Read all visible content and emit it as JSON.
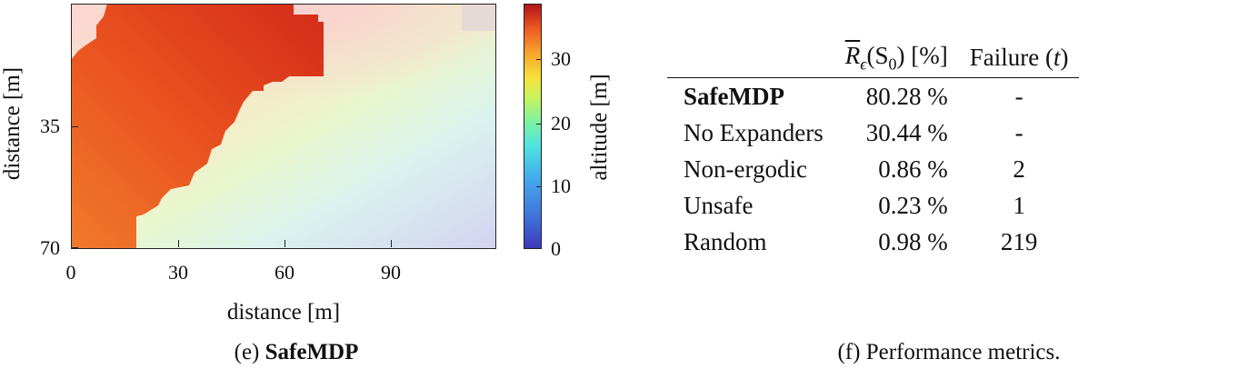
{
  "figure_e": {
    "caption_prefix": "(e) ",
    "caption_bold": "SafeMDP",
    "xlabel": "distance [m]",
    "ylabel": "distance [m]",
    "colorbar_label": "altitude [m]",
    "x_ticks": [
      "0",
      "30",
      "60",
      "90"
    ],
    "y_ticks": [
      "35",
      "70"
    ],
    "colorbar_ticks": [
      "0",
      "10",
      "20",
      "30"
    ],
    "colors": {
      "safe_region": "#ef5a1e",
      "safe_peak": "#d3301a",
      "background_high": "#fbd3d3",
      "background_low": "#d6d4f3"
    }
  },
  "figure_f": {
    "caption": "(f) Performance metrics.",
    "columns": {
      "reward_main": "R",
      "reward_sub": "ϵ",
      "reward_arg": "(S",
      "reward_arg_sub": "0",
      "reward_close": ")",
      "reward_unit": " [%]",
      "failure_prefix": "Failure (",
      "failure_var": "t",
      "failure_suffix": ")"
    },
    "rows": [
      {
        "name": "SafeMDP",
        "bold": true,
        "reward": "80.28 %",
        "failure": "-"
      },
      {
        "name": "No Expanders",
        "bold": false,
        "reward": "30.44 %",
        "failure": "-"
      },
      {
        "name": "Non-ergodic",
        "bold": false,
        "reward": "0.86 %",
        "failure": "2"
      },
      {
        "name": "Unsafe",
        "bold": false,
        "reward": "0.23 %",
        "failure": "1"
      },
      {
        "name": "Random",
        "bold": false,
        "reward": "0.98 %",
        "failure": "219"
      }
    ]
  }
}
